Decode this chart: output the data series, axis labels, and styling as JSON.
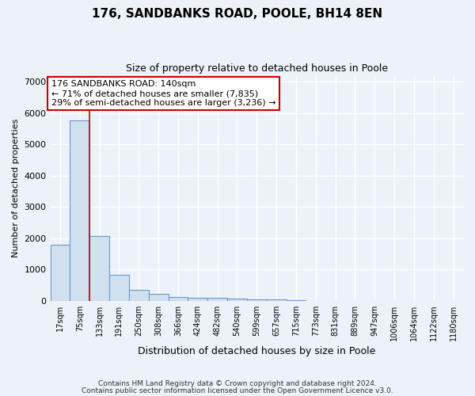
{
  "title_line1": "176, SANDBANKS ROAD, POOLE, BH14 8EN",
  "title_line2": "Size of property relative to detached houses in Poole",
  "xlabel": "Distribution of detached houses by size in Poole",
  "ylabel": "Number of detached properties",
  "bar_labels": [
    "17sqm",
    "75sqm",
    "133sqm",
    "191sqm",
    "250sqm",
    "308sqm",
    "366sqm",
    "424sqm",
    "482sqm",
    "540sqm",
    "599sqm",
    "657sqm",
    "715sqm",
    "773sqm",
    "831sqm",
    "889sqm",
    "947sqm",
    "1006sqm",
    "1064sqm",
    "1122sqm",
    "1180sqm"
  ],
  "bar_values": [
    1780,
    5780,
    2060,
    820,
    340,
    210,
    130,
    100,
    100,
    60,
    50,
    35,
    30,
    0,
    0,
    0,
    0,
    0,
    0,
    0,
    0
  ],
  "bar_color": "#d0e0ef",
  "bar_edge_color": "#6699cc",
  "background_color": "#edf2f9",
  "grid_color": "#ffffff",
  "annotation_text": "176 SANDBANKS ROAD: 140sqm\n← 71% of detached houses are smaller (7,835)\n29% of semi-detached houses are larger (3,236) →",
  "red_line_x": 1.5,
  "ylim_max": 7200,
  "yticks": [
    0,
    1000,
    2000,
    3000,
    4000,
    5000,
    6000,
    7000
  ],
  "footnote_line1": "Contains HM Land Registry data © Crown copyright and database right 2024.",
  "footnote_line2": "Contains public sector information licensed under the Open Government Licence v3.0."
}
